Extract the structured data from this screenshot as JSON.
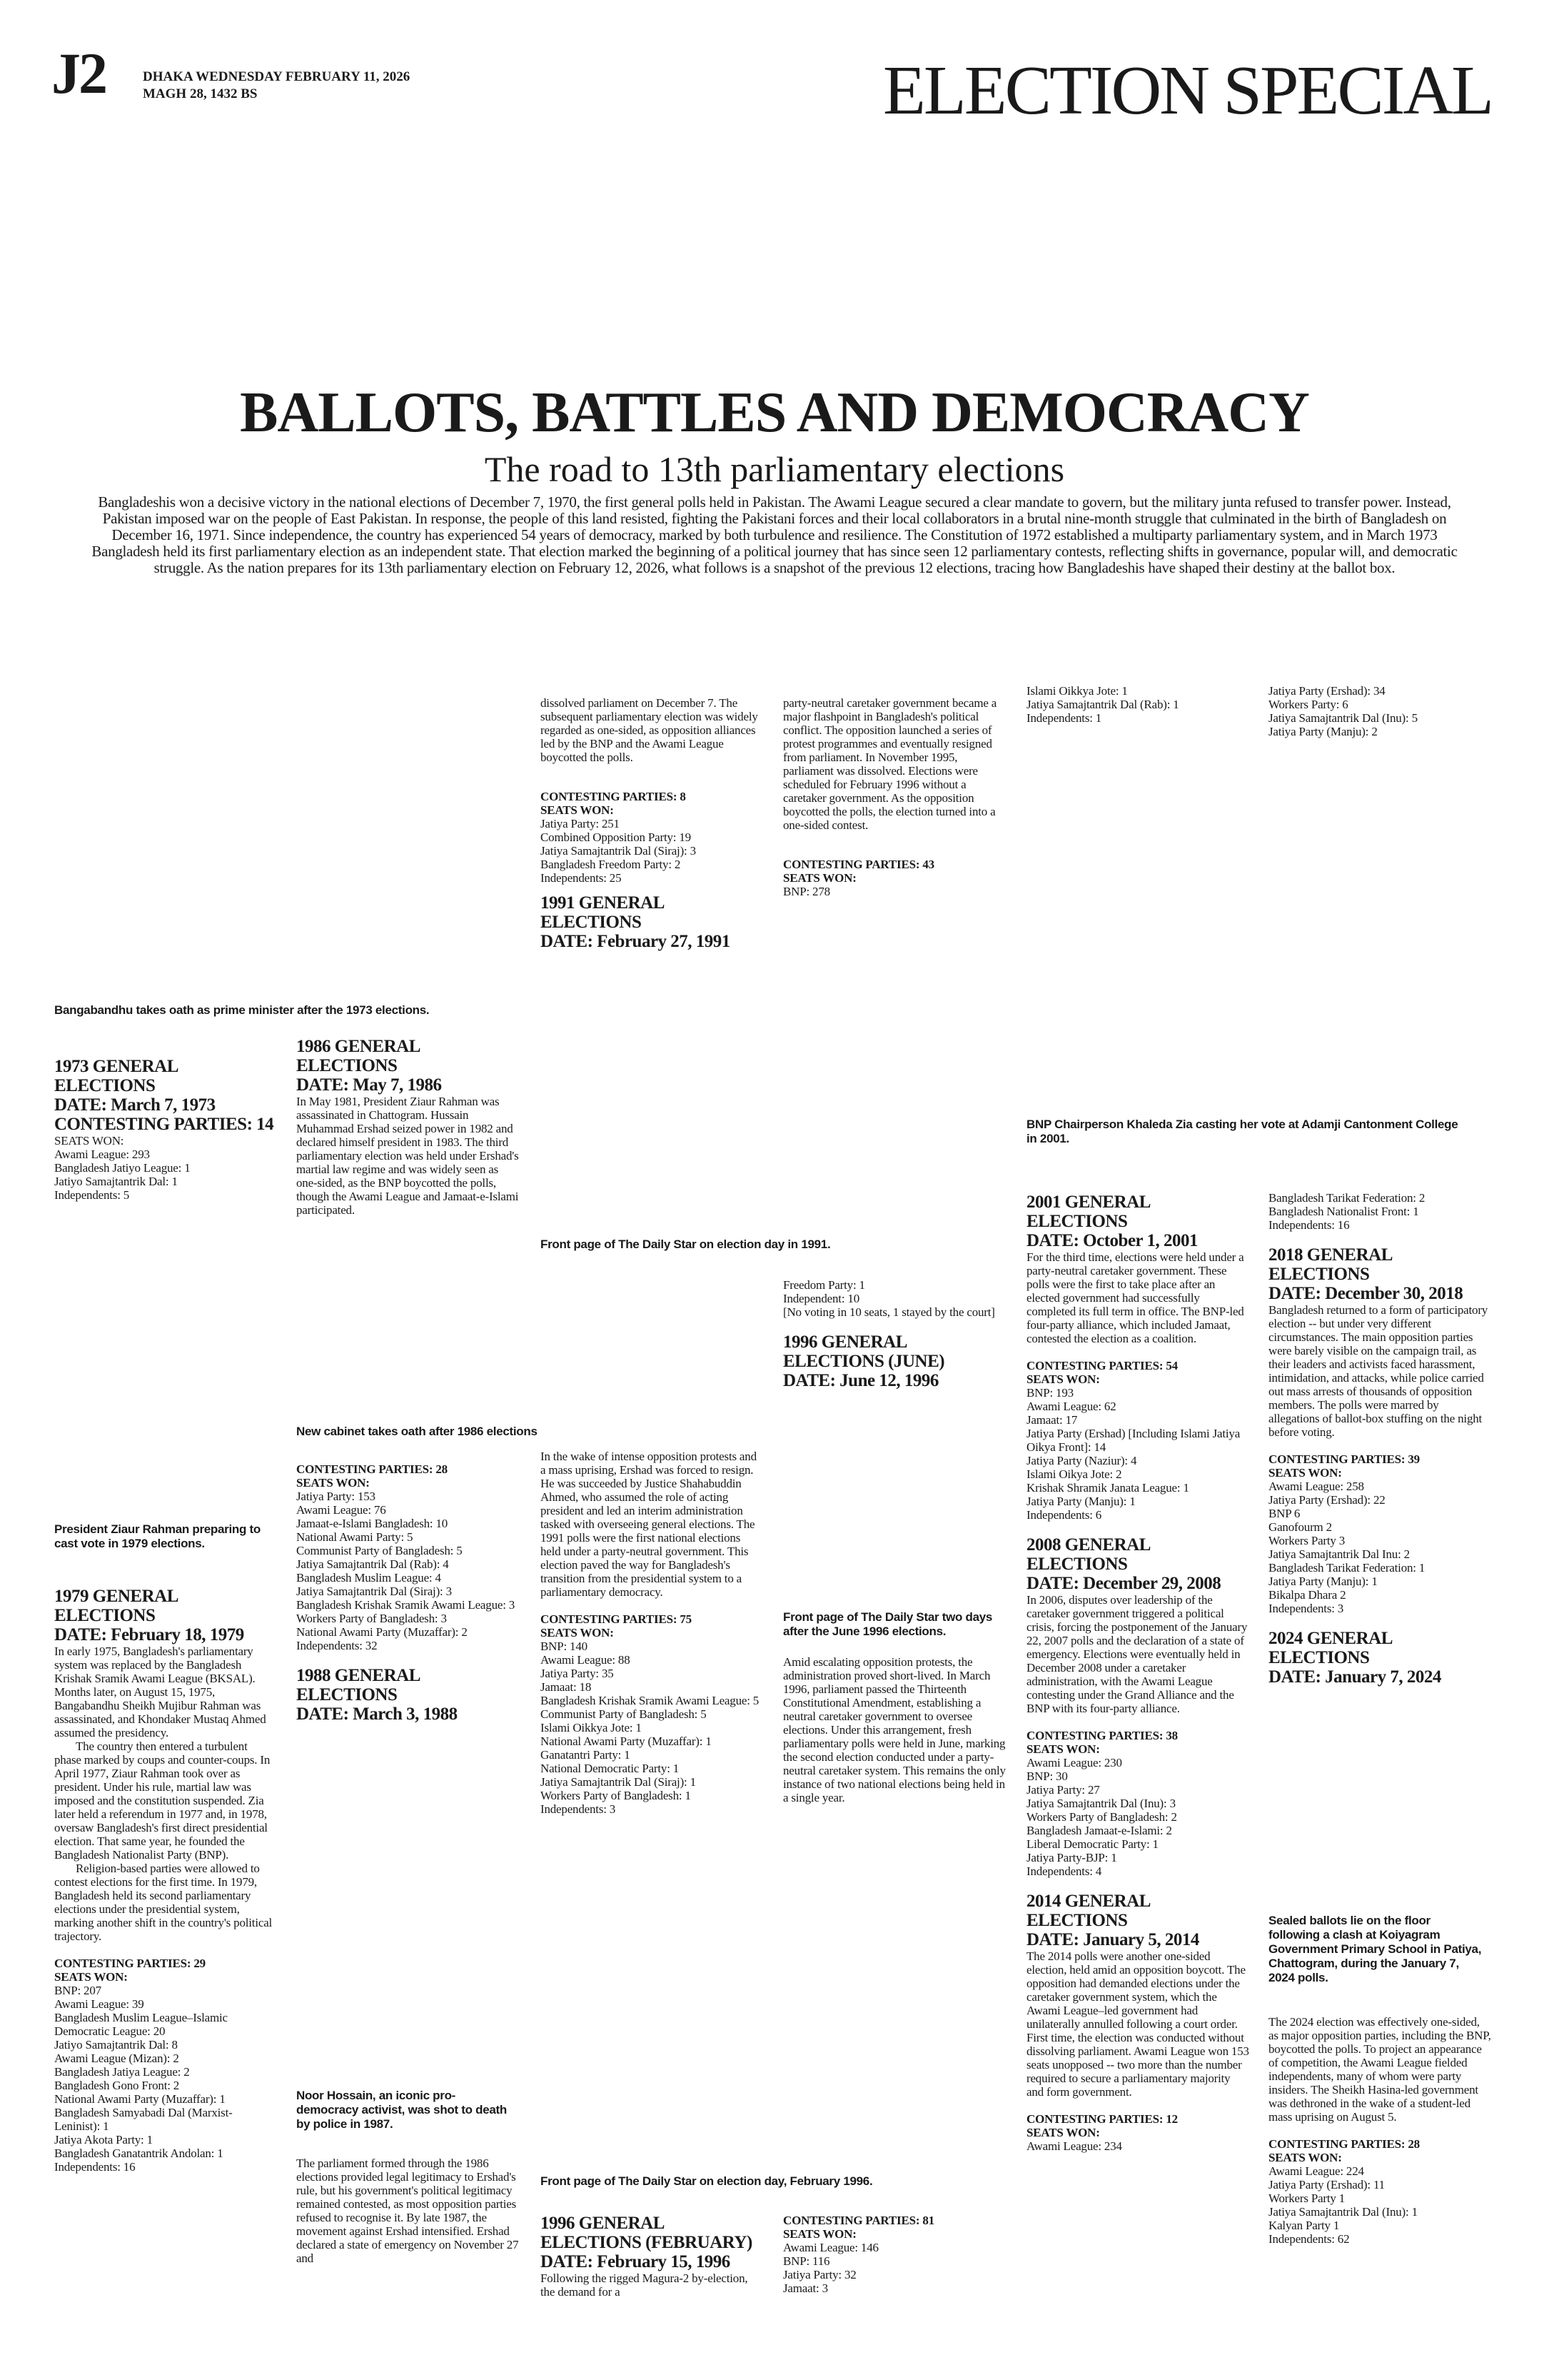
{
  "masthead": {
    "page": "J2",
    "date_line": "DHAKA WEDNESDAY FEBRUARY 11, 2026",
    "bangla_date": "MAGH 28, 1432 BS",
    "section": "ELECTION SPECIAL"
  },
  "headline": {
    "title": "BALLOTS, BATTLES AND DEMOCRACY",
    "subtitle": "The road to 13th parliamentary elections",
    "intro": "Bangladeshis won a decisive victory in the national elections of December 7, 1970, the first general polls held in Pakistan. The Awami League secured a clear mandate to govern, but the military junta refused to transfer power. Instead, Pakistan imposed war on the people of East Pakistan. In response, the people of this land resisted, fighting the Pakistani forces and their local collaborators in a brutal nine-month struggle that culminated in the birth of Bangladesh on December 16, 1971. Since independence, the country has experienced 54 years of democracy, marked by both turbulence and resilience. The Constitution of 1972 established a multiparty parliamentary system, and in March 1973 Bangladesh held its first parliamentary election as an independent state. That election marked the beginning of a political journey that has since seen 12 parliamentary contests, reflecting shifts in governance, popular will, and democratic struggle. As the nation prepares for its 13th parliamentary election on February 12, 2026, what follows is a snapshot of the previous 12 elections, tracing how Bangladeshis have shaped their destiny at the ballot box."
  },
  "captions": {
    "bangabandhu": "Bangabandhu takes oath as prime minister after the 1973 elections.",
    "front_1991": "Front page of The Daily Star on election day in 1991.",
    "khaleda": "BNP Chairperson Khaleda Zia casting her vote at Adamji Cantonment College in 2001.",
    "cabinet_1986": "New cabinet takes oath after 1986 elections",
    "ziaur": "President Ziaur Rahman preparing to cast vote in 1979 elections.",
    "front_june_1996": "Front page of The Daily Star two days after the June 1996 elections.",
    "sealed_ballots": "Sealed ballots lie on the floor following a clash at Koiyagram Government Primary School in Patiya, Chattogram, during the January 7, 2024 polls.",
    "noor_hossain": "Noor Hossain, an iconic pro-democracy activist, was shot to death by police in 1987.",
    "front_feb_1996": "Front page of The Daily Star on election day, February 1996."
  },
  "seats_label": "SEATS WON:",
  "e1973": {
    "heading": "1973 GENERAL ELECTIONS",
    "date": "DATE: March 7, 1973",
    "contesting": "CONTESTING PARTIES: 14",
    "seats": [
      "Awami League: 293",
      "Bangladesh Jatiyo League: 1",
      "Jatiyo Samajtantrik Dal: 1",
      "Independents: 5"
    ]
  },
  "e1979": {
    "heading": "1979 GENERAL ELECTIONS",
    "date": "DATE: February 18, 1979",
    "body": [
      "In early 1975, Bangladesh's parliamentary system was replaced by the Bangladesh Krishak Sramik Awami League (BKSAL). Months later, on August 15, 1975, Bangabandhu Sheikh Mujibur Rahman was assassinated, and Khondaker Mustaq Ahmed assumed the presidency.",
      "The country then entered a turbulent phase marked by coups and counter-coups. In April 1977, Ziaur Rahman took over as president. Under his rule, martial law was imposed and the constitution suspended. Zia later held a referendum in 1977 and, in 1978, oversaw Bangladesh's first direct presidential election. That same year, he founded the Bangladesh Nationalist Party (BNP).",
      "Religion-based parties were allowed to contest elections for the first time. In 1979, Bangladesh held its second parliamentary elections under the presidential system, marking another shift in the country's political trajectory."
    ],
    "contesting": "CONTESTING PARTIES: 29",
    "seats": [
      "BNP: 207",
      "Awami League: 39",
      "Bangladesh Muslim League–Islamic Democratic League: 20",
      "Jatiyo Samajtantrik Dal: 8",
      "Awami League (Mizan): 2",
      "Bangladesh Jatiya League: 2",
      "Bangladesh Gono Front: 2",
      "National Awami Party (Muzaffar): 1",
      "Bangladesh Samyabadi Dal (Marxist-Leninist): 1",
      "Jatiya Akota Party: 1",
      "Bangladesh Ganatantrik Andolan: 1",
      "Independents: 16"
    ]
  },
  "e1986": {
    "heading": "1986 GENERAL ELECTIONS",
    "date": "DATE: May 7, 1986",
    "body": "In May 1981, President Ziaur Rahman was assassinated in Chattogram. Hussain Muhammad Ershad seized power in 1982 and declared himself president in 1983. The third parliamentary election was held under Ershad's martial law regime and was widely seen as one-sided, as the BNP boycotted the polls, though the Awami League and Jamaat-e-Islami participated.",
    "contesting": "CONTESTING PARTIES: 28",
    "seats": [
      "Jatiya Party: 153",
      "Awami League: 76",
      "Jamaat-e-Islami Bangladesh: 10",
      "National Awami Party: 5",
      "Communist Party of Bangladesh: 5",
      "Jatiya Samajtantrik Dal (Rab): 4",
      "Bangladesh Muslim League: 4",
      "Jatiya Samajtantrik Dal (Siraj): 3",
      "Bangladesh Krishak Sramik Awami League: 3",
      "Workers Party of Bangladesh: 3",
      "National Awami Party (Muzaffar): 2",
      "Independents: 32"
    ]
  },
  "e1988": {
    "heading": "1988 GENERAL ELECTIONS",
    "date": "DATE: March 3, 1988",
    "body": [
      "The parliament formed through the 1986 elections provided legal legitimacy to Ershad's rule, but his government's political legitimacy remained contested, as most opposition parties refused to recognise it. By late 1987, the movement against Ershad intensified. Ershad declared a state of emergency on November 27 and",
      "dissolved parliament on December 7. The subsequent parliamentary election was widely regarded as one-sided, as opposition alliances led by the BNP and the Awami League boycotted the polls."
    ],
    "contesting": "CONTESTING PARTIES: 8",
    "seats": [
      "Jatiya Party: 251",
      "Combined Opposition Party: 19",
      "Jatiya Samajtantrik Dal (Siraj): 3",
      "Bangladesh Freedom Party: 2",
      "Independents: 25"
    ]
  },
  "e1991": {
    "heading": "1991 GENERAL ELECTIONS",
    "date": "DATE: February 27, 1991",
    "body": "In the wake of intense opposition protests and a mass uprising, Ershad was forced to resign. He was succeeded by Justice Shahabuddin Ahmed, who assumed the role of acting president and led an interim administration tasked with overseeing general elections. The 1991 polls were the first national elections held under a party-neutral government. This election paved the way for Bangladesh's transition from the presidential system to a parliamentary democracy.",
    "contesting": "CONTESTING PARTIES: 75",
    "seats": [
      "BNP: 140",
      "Awami League: 88",
      "Jatiya Party: 35",
      "Jamaat: 18",
      "Bangladesh Krishak Sramik Awami League: 5",
      "Communist Party of Bangladesh: 5",
      "Islami Oikkya Jote: 1",
      "National Awami Party (Muzaffar): 1",
      "Ganatantri Party: 1",
      "National Democratic Party: 1",
      "Jatiya Samajtantrik Dal (Siraj): 1",
      "Workers Party of Bangladesh: 1",
      "Independents: 3"
    ]
  },
  "e1996feb": {
    "heading": "1996 GENERAL ELECTIONS (FEBRUARY)",
    "date": "DATE: February 15, 1996",
    "body": [
      "Following the rigged Magura-2 by-election, the demand for a",
      "party-neutral caretaker government became a major flashpoint in Bangladesh's political conflict. The opposition launched a series of protest programmes and eventually resigned from parliament. In November 1995, parliament was dissolved. Elections were scheduled for February 1996 without a caretaker government. As the opposition boycotted the polls, the election turned into a one-sided contest."
    ],
    "contesting": "CONTESTING PARTIES: 43",
    "seats": [
      "BNP: 278",
      "Freedom Party: 1",
      "Independent: 10"
    ],
    "note": "[No voting in 10 seats, 1 stayed by the court]"
  },
  "e1996jun": {
    "heading": "1996 GENERAL ELECTIONS (JUNE)",
    "date": "DATE: June 12, 1996",
    "body": "Amid escalating opposition protests, the administration proved short-lived. In March 1996, parliament passed the Thirteenth Constitutional Amendment, establishing a neutral caretaker government to oversee elections. Under this arrangement, fresh parliamentary polls were held in June, marking the second election conducted under a party-neutral caretaker system. This remains the only instance of two national elections being held in a single year.",
    "contesting": "CONTESTING PARTIES: 81",
    "seats": [
      "Awami League: 146",
      "BNP: 116",
      "Jatiya Party: 32",
      "Jamaat: 3",
      "Islami Oikkya Jote: 1",
      "Jatiya Samajtantrik Dal (Rab): 1",
      "Independents: 1"
    ]
  },
  "e2001": {
    "heading": "2001 GENERAL ELECTIONS",
    "date": "DATE: October 1, 2001",
    "body": "For the third time, elections were held under a party-neutral caretaker government. These polls were the first to take place after an elected government had successfully completed its full term in office. The BNP-led four-party alliance, which included Jamaat, contested the election as a coalition.",
    "contesting": "CONTESTING PARTIES: 54",
    "seats": [
      "BNP: 193",
      "Awami League: 62",
      "Jamaat: 17",
      "Jatiya Party (Ershad) [Including Islami Jatiya Oikya Front]: 14",
      "Jatiya Party (Naziur): 4",
      "Islami Oikya Jote: 2",
      "Krishak Shramik Janata League: 1",
      "Jatiya Party (Manju): 1",
      "Independents: 6"
    ]
  },
  "e2008": {
    "heading": "2008 GENERAL ELECTIONS",
    "date": "DATE: December 29, 2008",
    "body": "In 2006, disputes over leadership of the caretaker government triggered a political crisis, forcing the postponement of the January 22, 2007 polls and the declaration of a state of emergency. Elections were eventually held in December 2008 under a caretaker administration, with the Awami League contesting under the Grand Alliance and the BNP with its four-party alliance.",
    "contesting": "CONTESTING PARTIES: 38",
    "seats": [
      "Awami League: 230",
      "BNP: 30",
      "Jatiya Party: 27",
      "Jatiya Samajtantrik Dal (Inu): 3",
      "Workers Party of Bangladesh: 2",
      "Bangladesh Jamaat-e-Islami: 2",
      "Liberal Democratic Party: 1",
      "Jatiya Party-BJP: 1",
      "Independents: 4"
    ]
  },
  "e2014": {
    "heading": "2014 GENERAL ELECTIONS",
    "date": "DATE: January 5, 2014",
    "body": "The 2014 polls were another one-sided election, held amid an opposition boycott. The opposition had demanded elections under the caretaker government system, which the Awami League–led government had unilaterally annulled following a court order. First time, the election was conducted without dissolving parliament. Awami League won 153 seats unopposed -- two more than the number required to secure a parliamentary majority and form government.",
    "contesting": "CONTESTING PARTIES: 12",
    "seats": [
      "Awami League: 234",
      "Jatiya Party (Ershad): 34",
      "Workers Party: 6",
      "Jatiya Samajtantrik Dal (Inu): 5",
      "Jatiya Party (Manju): 2",
      "Bangladesh Tarikat Federation: 2",
      "Bangladesh Nationalist Front: 1",
      "Independents: 16"
    ]
  },
  "e2018": {
    "heading": "2018 GENERAL ELECTIONS",
    "date": "DATE: December 30, 2018",
    "body": "Bangladesh returned to a form of participatory election -- but under very different circumstances. The main opposition parties were barely visible on the campaign trail, as their leaders and activists faced harassment, intimidation, and attacks, while police carried out mass arrests of thousands of opposition members. The polls were marred by allegations of ballot-box stuffing on the night before voting.",
    "contesting": "CONTESTING PARTIES: 39",
    "seats": [
      "Awami League: 258",
      "Jatiya Party (Ershad): 22",
      "BNP 6",
      "Ganofourm 2",
      "Workers Party 3",
      "Jatiya Samajtantrik Dal Inu: 2",
      "Bangladesh Tarikat Federation: 1",
      "Jatiya Party (Manju): 1",
      "Bikalpa Dhara 2",
      "Independents: 3"
    ]
  },
  "e2024": {
    "heading": "2024 GENERAL ELECTIONS",
    "date": "DATE: January 7, 2024",
    "body": "The 2024 election was effectively one-sided, as major opposition parties, including the BNP, boycotted the polls. To project an appearance of competition, the Awami League fielded independents, many of whom were party insiders. The Sheikh Hasina-led government was dethroned in the wake of a student-led mass uprising on August 5.",
    "contesting": "CONTESTING PARTIES: 28",
    "seats": [
      "Awami League: 224",
      "Jatiya Party (Ershad): 11",
      "Workers Party 1",
      "Jatiya Samajtantrik Dal (Inu): 1",
      "Kalyan Party 1",
      "Independents: 62"
    ]
  }
}
